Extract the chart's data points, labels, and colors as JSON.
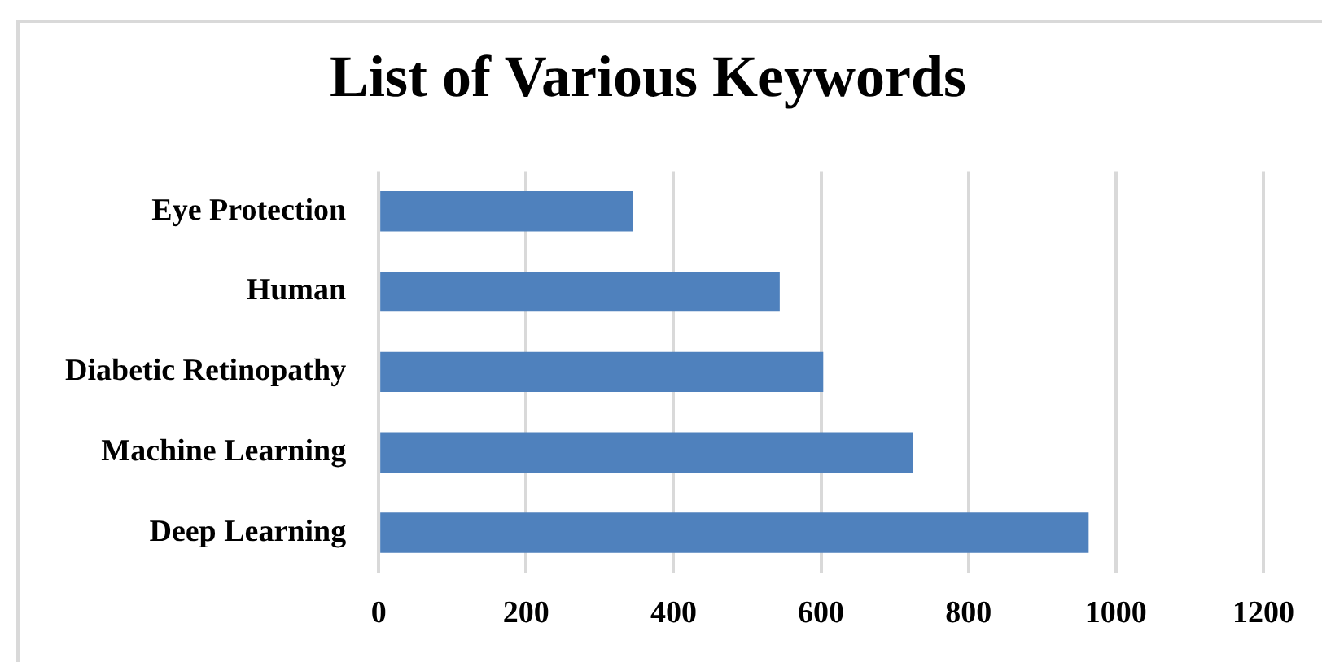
{
  "chart_data": {
    "type": "bar",
    "orientation": "horizontal",
    "title": "List of Various Keywords",
    "categories": [
      "Eye Protection",
      "Human",
      "Diabetic Retinopathy",
      "Machine Learning",
      "Deep Learning"
    ],
    "values": [
      345,
      544,
      603,
      725,
      963
    ],
    "color": "#4f81bd",
    "xlim": [
      0,
      1200
    ],
    "xticks": [
      0,
      200,
      400,
      600,
      800,
      1000,
      1200
    ],
    "grid": "x",
    "legend": false
  }
}
